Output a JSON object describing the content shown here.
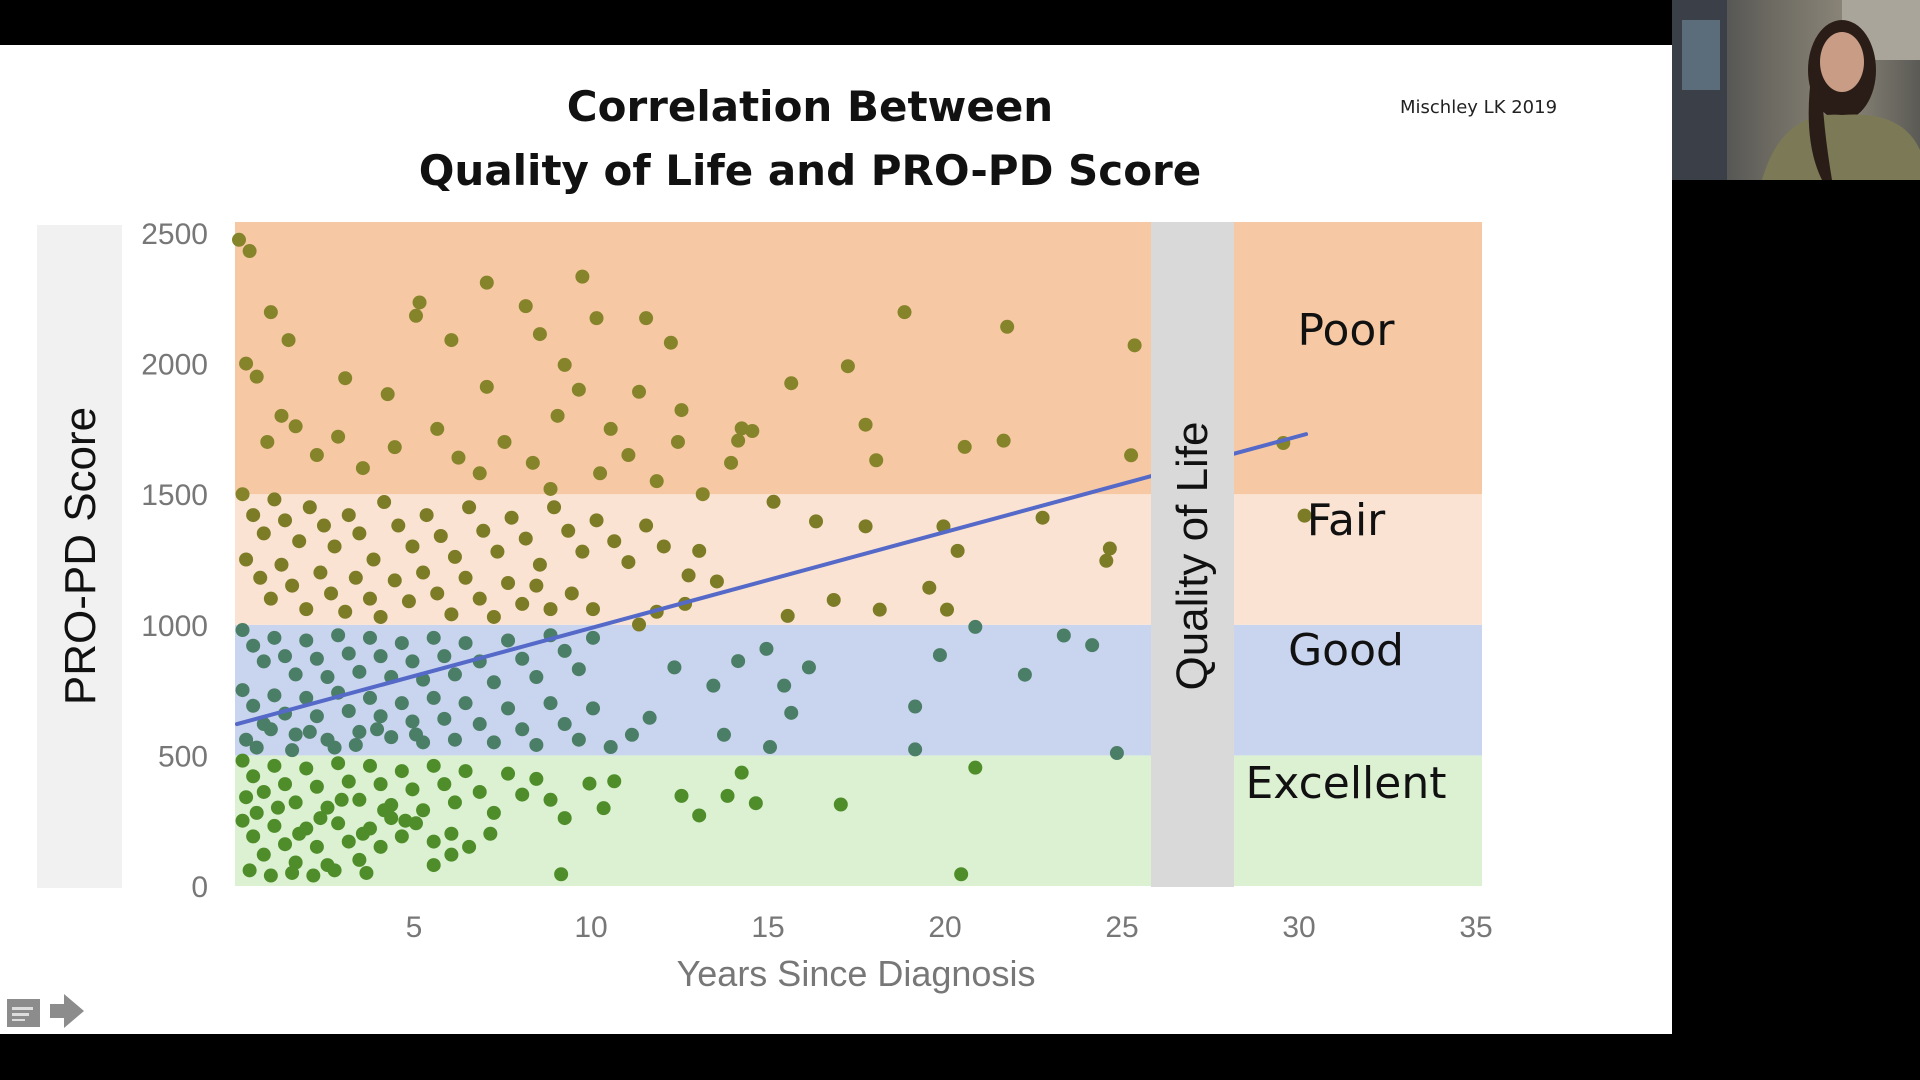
{
  "slide": {
    "title_line1": "Correlation Between",
    "title_line2": "Quality of Life and PRO-PD Score",
    "citation": "Mischley LK 2019"
  },
  "controls": {
    "notes_icon": "notes-icon",
    "next_icon": "arrow-right-icon"
  },
  "webcam": {
    "description_icon": "video-participant"
  },
  "chart_data": {
    "type": "scatter",
    "xlabel": "Years Since Diagnosis",
    "ylabel": "PRO-PD Score",
    "side_label": "Quality of Life",
    "xlim": [
      0,
      35
    ],
    "ylim": [
      0,
      2500
    ],
    "xticks": [
      5,
      10,
      15,
      20,
      25,
      30,
      35
    ],
    "yticks": [
      0,
      500,
      1000,
      1500,
      2000,
      2500
    ],
    "grid": false,
    "bands": [
      {
        "label": "Excellent",
        "from": 0,
        "to": 500,
        "color": "#dcf1d2"
      },
      {
        "label": "Good",
        "from": 500,
        "to": 1000,
        "color": "#c9d4ee"
      },
      {
        "label": "Fair",
        "from": 1000,
        "to": 1500,
        "color": "#fbe3d3"
      },
      {
        "label": "Poor",
        "from": 1500,
        "to": 2550,
        "color": "#f6c9a4"
      }
    ],
    "point_colors": {
      "Excellent": "#4f8d2b",
      "Good": "#4b7e66",
      "Fair": "#7c7c26",
      "Poor": "#86842a"
    },
    "trendline": {
      "x": [
        0,
        30.2
      ],
      "y": [
        620,
        1730
      ],
      "color": "#5569c8"
    },
    "points": [
      [
        0,
        2474
      ],
      [
        0.3,
        2431
      ],
      [
        0.9,
        2197
      ],
      [
        1.4,
        2090
      ],
      [
        7,
        2310
      ],
      [
        9.7,
        2333
      ],
      [
        8.1,
        2220
      ],
      [
        10.1,
        2174
      ],
      [
        11.5,
        2174
      ],
      [
        12.2,
        2080
      ],
      [
        8.5,
        2113
      ],
      [
        18.8,
        2197
      ],
      [
        21.7,
        2141
      ],
      [
        25.3,
        2070
      ],
      [
        17.2,
        1990
      ],
      [
        15.6,
        1925
      ],
      [
        5.1,
        2234
      ],
      [
        5,
        2183
      ],
      [
        6,
        2090
      ],
      [
        3,
        1944
      ],
      [
        4.2,
        1883
      ],
      [
        7,
        1911
      ],
      [
        9.2,
        1995
      ],
      [
        11.3,
        1892
      ],
      [
        12.5,
        1822
      ],
      [
        14.2,
        1752
      ],
      [
        17.7,
        1766
      ],
      [
        18,
        1630
      ],
      [
        20.5,
        1681
      ],
      [
        21.6,
        1705
      ],
      [
        25.2,
        1649
      ],
      [
        29.5,
        1696
      ],
      [
        30.1,
        1418
      ],
      [
        22.7,
        1410
      ],
      [
        19.9,
        1377
      ],
      [
        20.3,
        1283
      ],
      [
        24.6,
        1292
      ],
      [
        24.5,
        1245
      ],
      [
        19.5,
        1142
      ],
      [
        20,
        1058
      ],
      [
        18.1,
        1058
      ],
      [
        16.8,
        1095
      ],
      [
        15.5,
        1034
      ],
      [
        17.7,
        1377
      ],
      [
        16.3,
        1396
      ],
      [
        15.1,
        1471
      ],
      [
        23.3,
        959
      ],
      [
        24.1,
        922
      ],
      [
        22.2,
        809
      ],
      [
        20.8,
        992
      ],
      [
        19.8,
        884
      ],
      [
        19.1,
        687
      ],
      [
        19.1,
        523
      ],
      [
        20.8,
        453
      ],
      [
        24.8,
        509
      ],
      [
        20.4,
        45
      ],
      [
        9.1,
        45
      ],
      [
        17,
        312
      ],
      [
        14.2,
        434
      ],
      [
        14.6,
        317
      ],
      [
        13.8,
        345
      ],
      [
        13,
        270
      ],
      [
        12.5,
        345
      ],
      [
        15.4,
        767
      ],
      [
        16.1,
        837
      ],
      [
        14.9,
        908
      ],
      [
        14.1,
        861
      ],
      [
        13.4,
        767
      ],
      [
        13.7,
        579
      ],
      [
        15,
        532
      ],
      [
        15.6,
        663
      ],
      [
        11.3,
        1001
      ],
      [
        12.3,
        837
      ],
      [
        11.6,
        644
      ],
      [
        11.1,
        579
      ],
      [
        10.5,
        532
      ],
      [
        10.6,
        401
      ],
      [
        9.9,
        392
      ],
      [
        10.3,
        298
      ],
      [
        9.2,
        260
      ],
      [
        13,
        1283
      ],
      [
        12.7,
        1189
      ],
      [
        13.5,
        1166
      ],
      [
        14.1,
        1705
      ],
      [
        14.5,
        1742
      ],
      [
        13.9,
        1620
      ],
      [
        0.2,
        2000
      ],
      [
        0.5,
        1950
      ],
      [
        1.2,
        1800
      ],
      [
        0.8,
        1700
      ],
      [
        1.6,
        1760
      ],
      [
        2.2,
        1650
      ],
      [
        2.8,
        1720
      ],
      [
        3.5,
        1600
      ],
      [
        4.4,
        1680
      ],
      [
        5.6,
        1750
      ],
      [
        6.2,
        1640
      ],
      [
        6.8,
        1580
      ],
      [
        7.5,
        1700
      ],
      [
        8.3,
        1620
      ],
      [
        9,
        1800
      ],
      [
        9.6,
        1900
      ],
      [
        10.5,
        1750
      ],
      [
        11,
        1650
      ],
      [
        11.8,
        1550
      ],
      [
        12.4,
        1700
      ],
      [
        13.1,
        1500
      ],
      [
        10.2,
        1580
      ],
      [
        8.8,
        1520
      ],
      [
        0.1,
        1500
      ],
      [
        0.4,
        1420
      ],
      [
        0.7,
        1350
      ],
      [
        1,
        1480
      ],
      [
        1.3,
        1400
      ],
      [
        1.7,
        1320
      ],
      [
        2,
        1450
      ],
      [
        2.4,
        1380
      ],
      [
        2.7,
        1300
      ],
      [
        3.1,
        1420
      ],
      [
        3.4,
        1350
      ],
      [
        3.8,
        1250
      ],
      [
        4.1,
        1470
      ],
      [
        4.5,
        1380
      ],
      [
        4.9,
        1300
      ],
      [
        5.3,
        1420
      ],
      [
        5.7,
        1340
      ],
      [
        6.1,
        1260
      ],
      [
        6.5,
        1450
      ],
      [
        6.9,
        1360
      ],
      [
        7.3,
        1280
      ],
      [
        7.7,
        1410
      ],
      [
        8.1,
        1330
      ],
      [
        8.5,
        1230
      ],
      [
        8.9,
        1450
      ],
      [
        9.3,
        1360
      ],
      [
        9.7,
        1280
      ],
      [
        10.1,
        1400
      ],
      [
        10.6,
        1320
      ],
      [
        11,
        1240
      ],
      [
        11.5,
        1380
      ],
      [
        12,
        1300
      ],
      [
        0.2,
        1250
      ],
      [
        0.6,
        1180
      ],
      [
        0.9,
        1100
      ],
      [
        1.2,
        1230
      ],
      [
        1.5,
        1150
      ],
      [
        1.9,
        1060
      ],
      [
        2.3,
        1200
      ],
      [
        2.6,
        1120
      ],
      [
        3,
        1050
      ],
      [
        3.3,
        1180
      ],
      [
        3.7,
        1100
      ],
      [
        4,
        1030
      ],
      [
        4.4,
        1170
      ],
      [
        4.8,
        1090
      ],
      [
        5.2,
        1200
      ],
      [
        5.6,
        1120
      ],
      [
        6,
        1040
      ],
      [
        6.4,
        1180
      ],
      [
        6.8,
        1100
      ],
      [
        7.2,
        1030
      ],
      [
        7.6,
        1160
      ],
      [
        8,
        1080
      ],
      [
        8.4,
        1150
      ],
      [
        8.8,
        1060
      ],
      [
        9.4,
        1120
      ],
      [
        10,
        1060
      ],
      [
        11.8,
        1050
      ],
      [
        12.6,
        1080
      ],
      [
        0.1,
        980
      ],
      [
        0.4,
        920
      ],
      [
        0.7,
        860
      ],
      [
        1,
        950
      ],
      [
        1.3,
        880
      ],
      [
        1.6,
        810
      ],
      [
        1.9,
        940
      ],
      [
        2.2,
        870
      ],
      [
        2.5,
        800
      ],
      [
        2.8,
        960
      ],
      [
        3.1,
        890
      ],
      [
        3.4,
        820
      ],
      [
        3.7,
        950
      ],
      [
        4,
        880
      ],
      [
        4.3,
        800
      ],
      [
        4.6,
        930
      ],
      [
        4.9,
        860
      ],
      [
        5.2,
        790
      ],
      [
        5.5,
        950
      ],
      [
        5.8,
        880
      ],
      [
        6.1,
        810
      ],
      [
        6.4,
        930
      ],
      [
        6.8,
        860
      ],
      [
        7.2,
        780
      ],
      [
        7.6,
        940
      ],
      [
        8,
        870
      ],
      [
        8.4,
        800
      ],
      [
        8.8,
        960
      ],
      [
        9.2,
        900
      ],
      [
        9.6,
        830
      ],
      [
        10,
        950
      ],
      [
        0.1,
        750
      ],
      [
        0.4,
        690
      ],
      [
        0.7,
        620
      ],
      [
        1,
        730
      ],
      [
        1.3,
        660
      ],
      [
        1.6,
        580
      ],
      [
        1.9,
        720
      ],
      [
        2.2,
        650
      ],
      [
        2.5,
        560
      ],
      [
        2.8,
        740
      ],
      [
        3.1,
        670
      ],
      [
        3.4,
        590
      ],
      [
        3.7,
        720
      ],
      [
        4,
        650
      ],
      [
        4.3,
        570
      ],
      [
        4.6,
        700
      ],
      [
        4.9,
        630
      ],
      [
        5.2,
        550
      ],
      [
        5.5,
        720
      ],
      [
        5.8,
        640
      ],
      [
        6.1,
        560
      ],
      [
        6.4,
        700
      ],
      [
        6.8,
        620
      ],
      [
        7.2,
        550
      ],
      [
        7.6,
        680
      ],
      [
        8,
        600
      ],
      [
        8.4,
        540
      ],
      [
        8.8,
        700
      ],
      [
        9.2,
        620
      ],
      [
        9.6,
        560
      ],
      [
        10,
        680
      ],
      [
        0.2,
        560
      ],
      [
        0.5,
        530
      ],
      [
        0.9,
        600
      ],
      [
        1.5,
        520
      ],
      [
        2,
        590
      ],
      [
        2.7,
        530
      ],
      [
        3.3,
        540
      ],
      [
        3.9,
        600
      ],
      [
        5,
        580
      ],
      [
        0.1,
        480
      ],
      [
        0.4,
        420
      ],
      [
        0.7,
        360
      ],
      [
        1,
        460
      ],
      [
        1.3,
        390
      ],
      [
        1.6,
        320
      ],
      [
        1.9,
        450
      ],
      [
        2.2,
        380
      ],
      [
        2.5,
        300
      ],
      [
        2.8,
        470
      ],
      [
        3.1,
        400
      ],
      [
        3.4,
        330
      ],
      [
        3.7,
        460
      ],
      [
        4,
        390
      ],
      [
        4.3,
        310
      ],
      [
        4.6,
        440
      ],
      [
        4.9,
        370
      ],
      [
        5.2,
        290
      ],
      [
        5.5,
        460
      ],
      [
        5.8,
        390
      ],
      [
        6.1,
        320
      ],
      [
        6.4,
        440
      ],
      [
        6.8,
        360
      ],
      [
        7.2,
        280
      ],
      [
        7.6,
        430
      ],
      [
        8,
        350
      ],
      [
        8.4,
        410
      ],
      [
        8.8,
        330
      ],
      [
        0.1,
        250
      ],
      [
        0.4,
        190
      ],
      [
        0.7,
        120
      ],
      [
        1,
        230
      ],
      [
        1.3,
        160
      ],
      [
        1.6,
        90
      ],
      [
        1.9,
        220
      ],
      [
        2.2,
        150
      ],
      [
        2.5,
        80
      ],
      [
        2.8,
        240
      ],
      [
        3.1,
        170
      ],
      [
        3.4,
        100
      ],
      [
        3.7,
        220
      ],
      [
        4,
        150
      ],
      [
        4.3,
        260
      ],
      [
        4.6,
        190
      ],
      [
        5,
        240
      ],
      [
        5.5,
        170
      ],
      [
        6,
        200
      ],
      [
        6.5,
        150
      ],
      [
        7.1,
        200
      ],
      [
        0.3,
        60
      ],
      [
        0.9,
        40
      ],
      [
        1.5,
        50
      ],
      [
        2.1,
        40
      ],
      [
        2.7,
        60
      ],
      [
        3.6,
        50
      ],
      [
        5.5,
        80
      ],
      [
        6,
        120
      ],
      [
        0.2,
        340
      ],
      [
        0.5,
        280
      ],
      [
        1.1,
        300
      ],
      [
        1.7,
        200
      ],
      [
        2.3,
        260
      ],
      [
        2.9,
        330
      ],
      [
        3.5,
        200
      ],
      [
        4.1,
        290
      ],
      [
        4.7,
        250
      ]
    ]
  }
}
